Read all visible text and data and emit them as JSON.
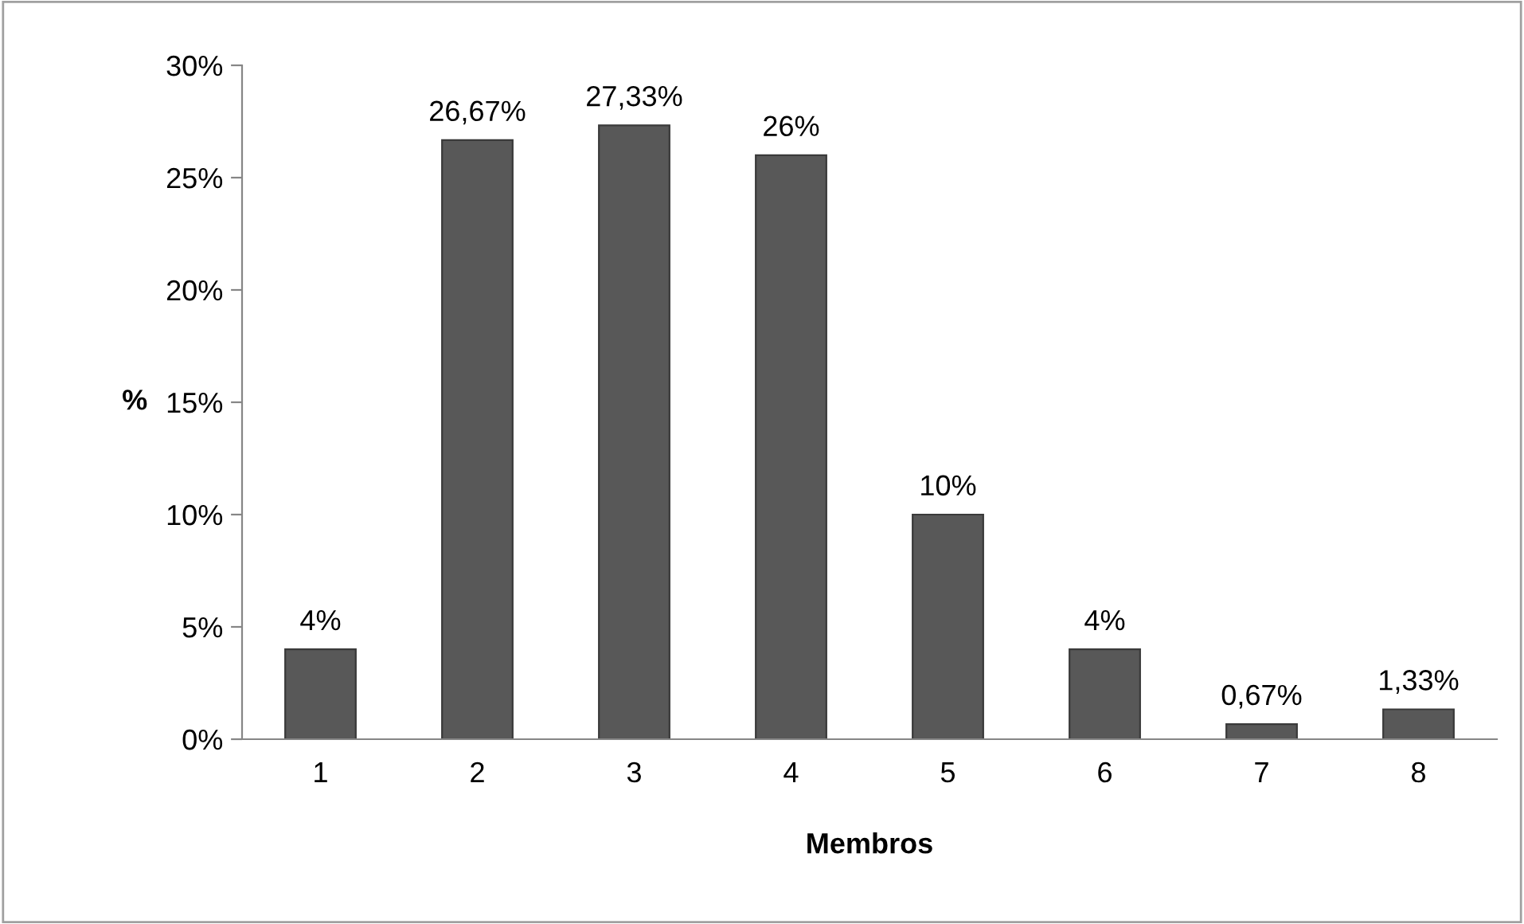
{
  "chart_data": {
    "type": "bar",
    "xlabel": "Membros",
    "ylabel": "%",
    "categories": [
      "1",
      "2",
      "3",
      "4",
      "5",
      "6",
      "7",
      "8"
    ],
    "values": [
      4,
      26.67,
      27.33,
      26,
      10,
      4,
      0.67,
      1.33
    ],
    "value_labels": [
      "4%",
      "26,67%",
      "27,33%",
      "26%",
      "10%",
      "4%",
      "0,67%",
      "1,33%"
    ],
    "color": "#585858",
    "ylim": [
      0,
      30
    ],
    "yticks": [
      {
        "value": 0,
        "label": "0%"
      },
      {
        "value": 5,
        "label": "5%"
      },
      {
        "value": 10,
        "label": "10%"
      },
      {
        "value": 15,
        "label": "15%"
      },
      {
        "value": 20,
        "label": "20%"
      },
      {
        "value": 25,
        "label": "25%"
      },
      {
        "value": 30,
        "label": "30%"
      }
    ],
    "grid": false,
    "legend": false
  }
}
